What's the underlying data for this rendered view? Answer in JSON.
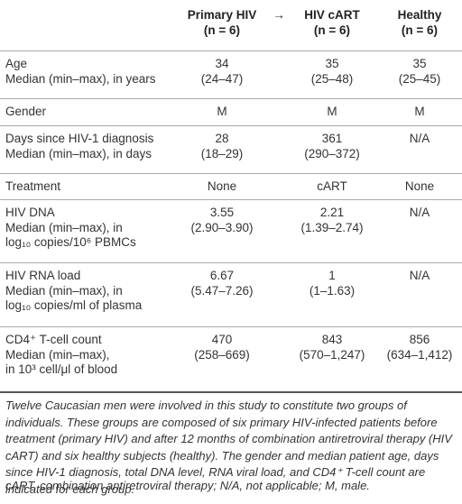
{
  "table": {
    "columns": [
      {
        "title": "Primary HIV",
        "n": "(n = 6)"
      },
      {
        "title": "HIV cART",
        "n": "(n = 6)"
      },
      {
        "title": "Healthy",
        "n": "(n = 6)"
      }
    ],
    "arrow": "→",
    "rows": [
      {
        "label": [
          "Age",
          "Median (min–max), in years"
        ],
        "cells": [
          [
            "34",
            "(24–47)"
          ],
          [
            "35",
            "(25–48)"
          ],
          [
            "35",
            "(25–45)"
          ]
        ]
      },
      {
        "label": [
          "Gender"
        ],
        "cells": [
          [
            "M"
          ],
          [
            "M"
          ],
          [
            "M"
          ]
        ]
      },
      {
        "label": [
          "Days since HIV-1 diagnosis",
          "Median (min–max), in days"
        ],
        "cells": [
          [
            "28",
            "(18–29)"
          ],
          [
            "361",
            "(290–372)"
          ],
          [
            "N/A"
          ]
        ]
      },
      {
        "label": [
          "Treatment"
        ],
        "cells": [
          [
            "None"
          ],
          [
            "cART"
          ],
          [
            "None"
          ]
        ]
      },
      {
        "label": [
          "HIV DNA",
          "Median (min–max), in",
          "log₁₀ copies/10⁶ PBMCs"
        ],
        "cells": [
          [
            "3.55",
            "(2.90–3.90)"
          ],
          [
            "2.21",
            "(1.39–2.74)"
          ],
          [
            "N/A"
          ]
        ]
      },
      {
        "label": [
          "HIV RNA load",
          "Median (min–max), in",
          "log₁₀ copies/ml of plasma"
        ],
        "cells": [
          [
            "6.67",
            "(5.47–7.26)"
          ],
          [
            "1",
            "(1–1.63)"
          ],
          [
            "N/A"
          ]
        ]
      },
      {
        "label": [
          "CD4⁺ T-cell count",
          "Median (min–max),",
          "in 10³ cell/μl of blood"
        ],
        "cells": [
          [
            "470",
            "(258–669)"
          ],
          [
            "843",
            "(570–1,247)"
          ],
          [
            "856",
            "(634–1,412)"
          ]
        ]
      }
    ]
  },
  "footnote": "Twelve Caucasian men were involved in this study to constitute two groups of individuals. These groups are composed of six primary HIV-infected patients before treatment (primary HIV) and after 12 months of combination antiretroviral therapy (HIV cART) and six healthy subjects (healthy). The gender and median patient age, days since HIV-1 diagnosis, total DNA level, RNA viral load, and CD4⁺ T-cell count are indicated for each group.",
  "abbreviations": "cART, combination antiretroviral therapy; N/A, not applicable; M, male."
}
